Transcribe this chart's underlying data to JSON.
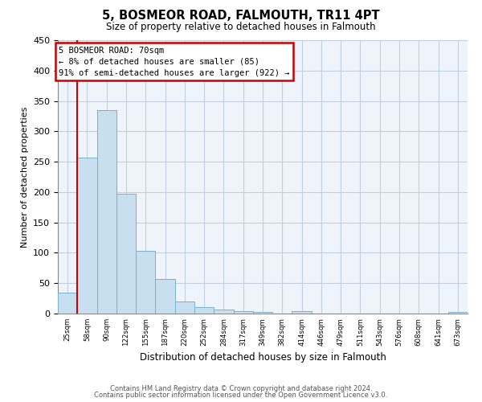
{
  "title": "5, BOSMEOR ROAD, FALMOUTH, TR11 4PT",
  "subtitle": "Size of property relative to detached houses in Falmouth",
  "xlabel": "Distribution of detached houses by size in Falmouth",
  "ylabel": "Number of detached properties",
  "bar_labels": [
    "25sqm",
    "58sqm",
    "90sqm",
    "122sqm",
    "155sqm",
    "187sqm",
    "220sqm",
    "252sqm",
    "284sqm",
    "317sqm",
    "349sqm",
    "382sqm",
    "414sqm",
    "446sqm",
    "479sqm",
    "511sqm",
    "543sqm",
    "576sqm",
    "608sqm",
    "641sqm",
    "673sqm"
  ],
  "bar_values": [
    35,
    257,
    335,
    197,
    103,
    57,
    20,
    11,
    7,
    4,
    2,
    0,
    4,
    0,
    0,
    0,
    0,
    0,
    0,
    0,
    3
  ],
  "bar_color": "#c8dff0",
  "bar_edge_color": "#7ab0cc",
  "property_line_x": 1.0,
  "annotation_line1": "5 BOSMEOR ROAD: 70sqm",
  "annotation_line2": "← 8% of detached houses are smaller (85)",
  "annotation_line3": "91% of semi-detached houses are larger (922) →",
  "annotation_box_color": "#ffffff",
  "annotation_box_edge_color": "#cc0000",
  "property_line_color": "#cc0000",
  "ylim": [
    0,
    450
  ],
  "yticks": [
    0,
    50,
    100,
    150,
    200,
    250,
    300,
    350,
    400,
    450
  ],
  "footnote1": "Contains HM Land Registry data © Crown copyright and database right 2024.",
  "footnote2": "Contains public sector information licensed under the Open Government Licence v3.0.",
  "plot_bg_color": "#eef4fa",
  "fig_bg_color": "#ffffff",
  "grid_color": "#c0d0e0"
}
